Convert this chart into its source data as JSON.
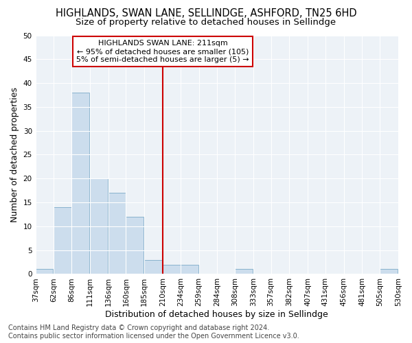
{
  "title1": "HIGHLANDS, SWAN LANE, SELLINDGE, ASHFORD, TN25 6HD",
  "title2": "Size of property relative to detached houses in Sellindge",
  "xlabel": "Distribution of detached houses by size in Sellindge",
  "ylabel": "Number of detached properties",
  "footer1": "Contains HM Land Registry data © Crown copyright and database right 2024.",
  "footer2": "Contains public sector information licensed under the Open Government Licence v3.0.",
  "annotation_line1": "HIGHLANDS SWAN LANE: 211sqm",
  "annotation_line2": "← 95% of detached houses are smaller (105)",
  "annotation_line3": "5% of semi-detached houses are larger (5) →",
  "bar_left_edges": [
    37,
    62,
    86,
    111,
    136,
    160,
    185,
    210,
    234,
    259,
    284,
    308,
    333,
    357,
    382,
    407,
    431,
    456,
    481,
    505
  ],
  "bar_heights": [
    1,
    14,
    38,
    20,
    17,
    12,
    3,
    2,
    2,
    0,
    0,
    1,
    0,
    0,
    0,
    0,
    0,
    0,
    0,
    1
  ],
  "bin_width": 24,
  "last_edge": 530,
  "bar_color": "#ccdded",
  "bar_edge_color": "#7aaac8",
  "reference_line_x": 210,
  "reference_line_color": "#cc0000",
  "background_color": "#edf2f7",
  "ylim": [
    0,
    50
  ],
  "yticks": [
    0,
    5,
    10,
    15,
    20,
    25,
    30,
    35,
    40,
    45,
    50
  ],
  "tick_labels": [
    "37sqm",
    "62sqm",
    "86sqm",
    "111sqm",
    "136sqm",
    "160sqm",
    "185sqm",
    "210sqm",
    "234sqm",
    "259sqm",
    "284sqm",
    "308sqm",
    "333sqm",
    "357sqm",
    "382sqm",
    "407sqm",
    "431sqm",
    "456sqm",
    "481sqm",
    "505sqm",
    "530sqm"
  ],
  "title1_fontsize": 10.5,
  "title2_fontsize": 9.5,
  "axis_label_fontsize": 9,
  "tick_fontsize": 7.5,
  "annotation_fontsize": 8,
  "footer_fontsize": 7
}
